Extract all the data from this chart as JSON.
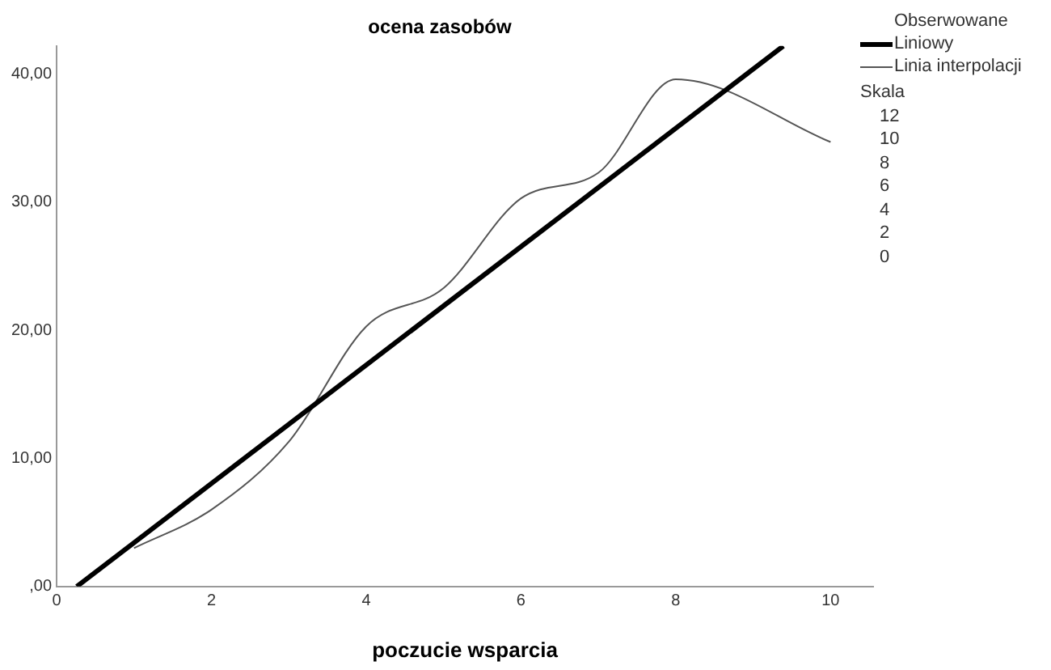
{
  "chart_data": {
    "type": "line",
    "title": "ocena zasobów",
    "xlabel": "poczucie wsparcia",
    "xlim": [
      0,
      10.55
    ],
    "xticks": [
      0,
      2,
      4,
      6,
      8,
      10
    ],
    "ylim": [
      0,
      42.2
    ],
    "yticks": [
      {
        "value": 0,
        "label": ",00"
      },
      {
        "value": 10,
        "label": "10,00"
      },
      {
        "value": 20,
        "label": "20,00"
      },
      {
        "value": 30,
        "label": "30,00"
      },
      {
        "value": 40,
        "label": "40,00"
      }
    ],
    "series": [
      {
        "name": "Liniowy",
        "color": "#000000",
        "x": [
          0.26,
          9.39
        ],
        "values": [
          0,
          42.2
        ]
      },
      {
        "name": "Linia interpolacji",
        "color": "#555555",
        "x": [
          1,
          2,
          3,
          4,
          5,
          6,
          7,
          8,
          10
        ],
        "values": [
          3,
          6,
          11.3,
          20.3,
          23.3,
          30.3,
          32.3,
          39.6,
          34.7
        ]
      }
    ],
    "legend_title": "Obserwowane",
    "annotations": [
      "Skala",
      "12",
      "10",
      "8",
      "6",
      "4",
      "2",
      "0"
    ],
    "legend": "right",
    "grid": false,
    "marker": "none",
    "line_style": "solid"
  }
}
